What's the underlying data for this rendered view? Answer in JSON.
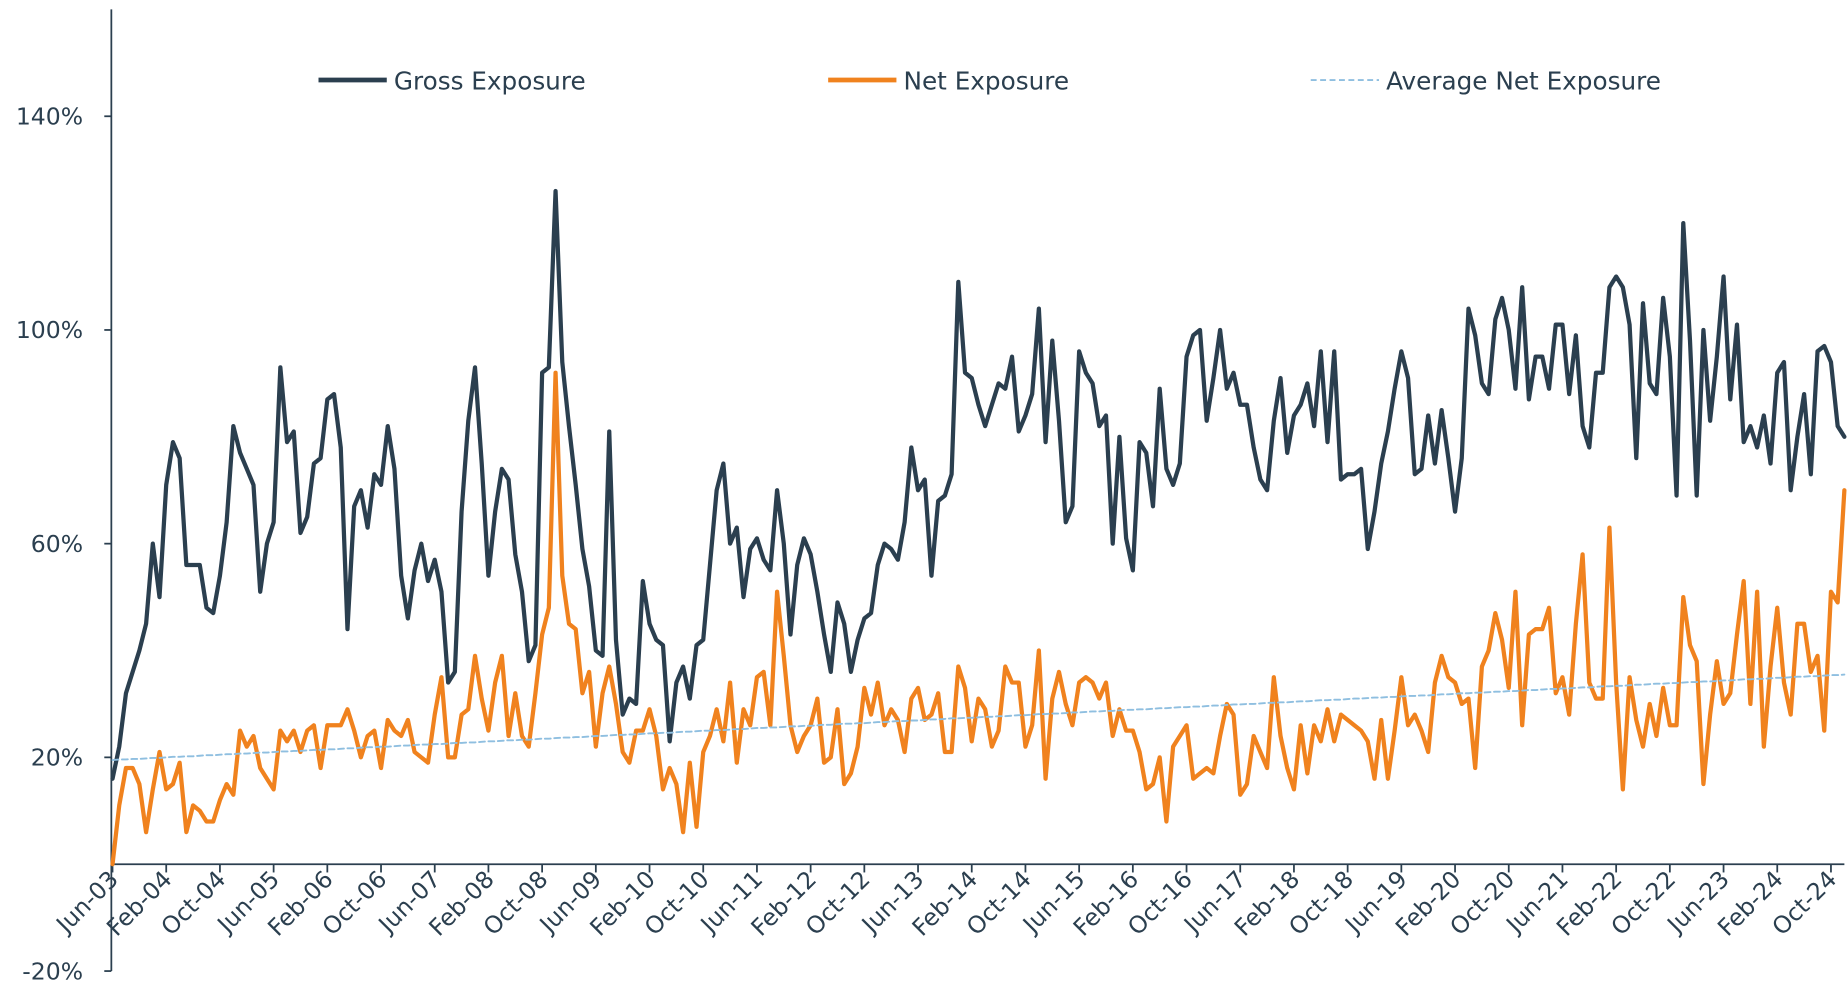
{
  "chart_data": {
    "type": "line",
    "categories": [
      "Jun-03",
      null,
      null,
      null,
      null,
      null,
      null,
      null,
      "Feb-04",
      null,
      null,
      null,
      null,
      null,
      null,
      null,
      "Oct-04",
      null,
      null,
      null,
      null,
      null,
      null,
      null,
      "Jun-05",
      null,
      null,
      null,
      null,
      null,
      null,
      null,
      "Feb-06",
      null,
      null,
      null,
      null,
      null,
      null,
      null,
      "Oct-06",
      null,
      null,
      null,
      null,
      null,
      null,
      null,
      "Jun-07",
      null,
      null,
      null,
      null,
      null,
      null,
      null,
      "Feb-08",
      null,
      null,
      null,
      null,
      null,
      null,
      null,
      "Oct-08",
      null,
      null,
      null,
      null,
      null,
      null,
      null,
      "Jun-09",
      null,
      null,
      null,
      null,
      null,
      null,
      null,
      "Feb-10",
      null,
      null,
      null,
      null,
      null,
      null,
      null,
      "Oct-10",
      null,
      null,
      null,
      null,
      null,
      null,
      null,
      "Jun-11",
      null,
      null,
      null,
      null,
      null,
      null,
      null,
      "Feb-12",
      null,
      null,
      null,
      null,
      null,
      null,
      null,
      "Oct-12",
      null,
      null,
      null,
      null,
      null,
      null,
      null,
      "Jun-13",
      null,
      null,
      null,
      null,
      null,
      null,
      null,
      "Feb-14",
      null,
      null,
      null,
      null,
      null,
      null,
      null,
      "Oct-14",
      null,
      null,
      null,
      null,
      null,
      null,
      null,
      "Jun-15",
      null,
      null,
      null,
      null,
      null,
      null,
      null,
      "Feb-16",
      null,
      null,
      null,
      null,
      null,
      null,
      null,
      "Oct-16",
      null,
      null,
      null,
      null,
      null,
      null,
      null,
      "Jun-17",
      null,
      null,
      null,
      null,
      null,
      null,
      null,
      "Feb-18",
      null,
      null,
      null,
      null,
      null,
      null,
      null,
      "Oct-18",
      null,
      null,
      null,
      null,
      null,
      null,
      null,
      "Jun-19",
      null,
      null,
      null,
      null,
      null,
      null,
      null,
      "Feb-20",
      null,
      null,
      null,
      null,
      null,
      null,
      null,
      "Oct-20",
      null,
      null,
      null,
      null,
      null,
      null,
      null,
      "Jun-21",
      null,
      null,
      null,
      null,
      null,
      null,
      null,
      "Feb-22",
      null,
      null,
      null,
      null,
      null,
      null,
      null,
      "Oct-22",
      null,
      null,
      null,
      null,
      null,
      null,
      null,
      "Jun-23",
      null,
      null,
      null,
      null,
      null,
      null,
      null,
      "Feb-24",
      null,
      null,
      null,
      null,
      null,
      null,
      null,
      "Oct-24",
      null,
      null
    ],
    "series": [
      {
        "name": "Gross Exposure",
        "color": "#2b3f4f",
        "dashed": false,
        "values": [
          16,
          22,
          32,
          36,
          40,
          45,
          60,
          50,
          71,
          79,
          76,
          56,
          56,
          56,
          48,
          47,
          54,
          64,
          82,
          77,
          74,
          71,
          51,
          60,
          64,
          93,
          79,
          81,
          62,
          65,
          75,
          76,
          87,
          88,
          78,
          44,
          67,
          70,
          63,
          73,
          71,
          82,
          74,
          54,
          46,
          55,
          60,
          53,
          57,
          51,
          34,
          36,
          66,
          83,
          93,
          75,
          54,
          66,
          74,
          72,
          58,
          51,
          38,
          41,
          92,
          93,
          126,
          94,
          82,
          71,
          59,
          52,
          40,
          39,
          81,
          42,
          28,
          31,
          30,
          53,
          45,
          42,
          41,
          23,
          34,
          37,
          31,
          41,
          42,
          56,
          70,
          75,
          60,
          63,
          50,
          59,
          61,
          57,
          55,
          70,
          60,
          43,
          56,
          61,
          58,
          51,
          43,
          36,
          49,
          45,
          36,
          42,
          46,
          47,
          56,
          60,
          59,
          57,
          64,
          78,
          70,
          72,
          54,
          68,
          69,
          73,
          109,
          92,
          91,
          86,
          82,
          86,
          90,
          89,
          95,
          81,
          84,
          88,
          104,
          79,
          98,
          83,
          64,
          67,
          96,
          92,
          90,
          82,
          84,
          60,
          80,
          61,
          55,
          79,
          77,
          67,
          89,
          74,
          71,
          75,
          95,
          99,
          100,
          83,
          91,
          100,
          89,
          92,
          86,
          86,
          78,
          72,
          70,
          83,
          91,
          77,
          84,
          86,
          90,
          82,
          96,
          79,
          96,
          72,
          73,
          73,
          74,
          59,
          66,
          75,
          81,
          89,
          96,
          91,
          73,
          74,
          84,
          75,
          85,
          76,
          66,
          76,
          104,
          99,
          90,
          88,
          102,
          106,
          100,
          89,
          108,
          87,
          95,
          95,
          89,
          101,
          101,
          88,
          99,
          82,
          78,
          92,
          92,
          108,
          110,
          108,
          101,
          76,
          105,
          90,
          88,
          106,
          95,
          69,
          120,
          98,
          69,
          100,
          83,
          95,
          110,
          87,
          101,
          79,
          82,
          78,
          84,
          75,
          92,
          94,
          70,
          80,
          88,
          73,
          96,
          97,
          94,
          82,
          80
        ]
      },
      {
        "name": "Net Exposure",
        "color": "#f0821e",
        "dashed": false,
        "values": [
          0,
          11,
          18,
          18,
          15,
          6,
          14,
          21,
          14,
          15,
          19,
          6,
          11,
          10,
          8,
          8,
          12,
          15,
          13,
          25,
          22,
          24,
          18,
          16,
          14,
          25,
          23,
          25,
          21,
          25,
          26,
          18,
          26,
          26,
          26,
          29,
          25,
          20,
          24,
          25,
          18,
          27,
          25,
          24,
          27,
          21,
          20,
          19,
          28,
          35,
          20,
          20,
          28,
          29,
          39,
          31,
          25,
          34,
          39,
          24,
          32,
          24,
          22,
          32,
          43,
          48,
          92,
          54,
          45,
          44,
          32,
          36,
          22,
          32,
          37,
          30,
          21,
          19,
          25,
          25,
          29,
          24,
          14,
          18,
          15,
          6,
          19,
          7,
          21,
          24,
          29,
          23,
          34,
          19,
          29,
          26,
          35,
          36,
          26,
          51,
          39,
          26,
          21,
          24,
          26,
          31,
          19,
          20,
          29,
          15,
          17,
          22,
          33,
          28,
          34,
          26,
          29,
          27,
          21,
          31,
          33,
          27,
          28,
          32,
          21,
          21,
          37,
          33,
          23,
          31,
          29,
          22,
          25,
          37,
          34,
          34,
          22,
          26,
          40,
          16,
          31,
          36,
          30,
          26,
          34,
          35,
          34,
          31,
          34,
          24,
          29,
          25,
          25,
          21,
          14,
          15,
          20,
          8,
          22,
          24,
          26,
          16,
          17,
          18,
          17,
          24,
          30,
          28,
          13,
          15,
          24,
          21,
          18,
          35,
          24,
          18,
          14,
          26,
          17,
          26,
          23,
          29,
          23,
          28,
          27,
          26,
          25,
          23,
          16,
          27,
          16,
          25,
          35,
          26,
          28,
          25,
          21,
          34,
          39,
          35,
          34,
          30,
          31,
          18,
          37,
          40,
          47,
          42,
          33,
          51,
          26,
          43,
          44,
          44,
          48,
          32,
          35,
          28,
          45,
          58,
          34,
          31,
          31,
          63,
          34,
          14,
          35,
          27,
          22,
          30,
          24,
          33,
          26,
          26,
          50,
          41,
          38,
          15,
          28,
          38,
          30,
          32,
          43,
          53,
          30,
          51,
          22,
          37,
          48,
          34,
          28,
          45,
          45,
          36,
          39,
          25,
          51,
          49,
          70
        ]
      },
      {
        "name": "Average Net Exposure",
        "color": "#8fbfe0",
        "dashed": true,
        "values": [
          19.5,
          19.6,
          19.6,
          19.7,
          19.7,
          19.8,
          19.9,
          19.9,
          20.0,
          20.1,
          20.1,
          20.2,
          20.2,
          20.3,
          20.4,
          20.4,
          20.5,
          20.6,
          20.6,
          20.7,
          20.7,
          20.8,
          20.9,
          20.9,
          21.0,
          21.1,
          21.1,
          21.2,
          21.2,
          21.3,
          21.4,
          21.4,
          21.5,
          21.5,
          21.6,
          21.7,
          21.7,
          21.8,
          21.9,
          21.9,
          22.0,
          22.0,
          22.1,
          22.2,
          22.2,
          22.3,
          22.4,
          22.4,
          22.5,
          22.5,
          22.6,
          22.7,
          22.7,
          22.8,
          22.8,
          22.9,
          23.0,
          23.0,
          23.1,
          23.2,
          23.2,
          23.3,
          23.3,
          23.4,
          23.5,
          23.5,
          23.6,
          23.7,
          23.7,
          23.8,
          23.8,
          23.9,
          24.0,
          24.0,
          24.1,
          24.2,
          24.2,
          24.3,
          24.3,
          24.4,
          24.5,
          24.5,
          24.6,
          24.6,
          24.7,
          24.8,
          24.8,
          24.9,
          25.0,
          25.0,
          25.1,
          25.1,
          25.2,
          25.3,
          25.3,
          25.4,
          25.5,
          25.5,
          25.6,
          25.6,
          25.7,
          25.8,
          25.8,
          25.9,
          25.9,
          26.0,
          26.1,
          26.1,
          26.2,
          26.3,
          26.3,
          26.4,
          26.4,
          26.5,
          26.6,
          26.6,
          26.7,
          26.8,
          26.8,
          26.9,
          26.9,
          27.0,
          27.1,
          27.1,
          27.2,
          27.3,
          27.3,
          27.4,
          27.4,
          27.5,
          27.6,
          27.6,
          27.7,
          27.7,
          27.8,
          27.9,
          27.9,
          28.0,
          28.1,
          28.1,
          28.2,
          28.2,
          28.3,
          28.4,
          28.4,
          28.5,
          28.6,
          28.6,
          28.7,
          28.7,
          28.8,
          28.9,
          28.9,
          29.0,
          29.0,
          29.1,
          29.2,
          29.2,
          29.3,
          29.4,
          29.4,
          29.5,
          29.5,
          29.6,
          29.7,
          29.7,
          29.8,
          29.9,
          29.9,
          30.0,
          30.0,
          30.1,
          30.2,
          30.2,
          30.3,
          30.3,
          30.4,
          30.5,
          30.5,
          30.6,
          30.7,
          30.7,
          30.8,
          30.8,
          30.9,
          31.0,
          31.0,
          31.1,
          31.2,
          31.2,
          31.3,
          31.3,
          31.4,
          31.5,
          31.5,
          31.6,
          31.6,
          31.7,
          31.8,
          31.8,
          31.9,
          32.0,
          32.0,
          32.1,
          32.1,
          32.2,
          32.3,
          32.3,
          32.4,
          32.4,
          32.5,
          32.6,
          32.6,
          32.7,
          32.8,
          32.8,
          32.9,
          32.9,
          33.0,
          33.1,
          33.1,
          33.2,
          33.3,
          33.3,
          33.4,
          33.4,
          33.5,
          33.6,
          33.6,
          33.7,
          33.8,
          33.8,
          33.9,
          33.9,
          34.0,
          34.1,
          34.1,
          34.2,
          34.2,
          34.3,
          34.4,
          34.4,
          34.5,
          34.6,
          34.6,
          34.7,
          34.7,
          34.8,
          34.9,
          34.9,
          35.0,
          35.1,
          35.1,
          35.2,
          35.2,
          35.3,
          35.4,
          35.4,
          35.5
        ]
      }
    ],
    "ylim": [
      -20,
      160
    ],
    "yticks": [
      {
        "value": -20,
        "label": "-20%"
      },
      {
        "value": 20,
        "label": "20%"
      },
      {
        "value": 60,
        "label": "60%"
      },
      {
        "value": 100,
        "label": "100%"
      },
      {
        "value": 140,
        "label": "140%"
      }
    ],
    "legend": "top",
    "grid": false
  }
}
